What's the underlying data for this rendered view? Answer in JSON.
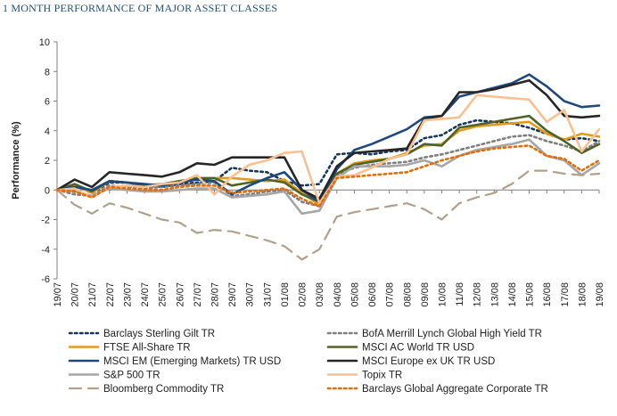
{
  "header": {
    "title": "1 MONTH PERFORMANCE OF MAJOR ASSET CLASSES"
  },
  "chart_data": {
    "type": "line",
    "title": "1 MONTH PERFORMANCE OF MAJOR ASSET CLASSES",
    "ylabel": "Performance (%)",
    "xlabel": "",
    "ylim": [
      -6,
      10
    ],
    "yticks": [
      -6,
      -4,
      -2,
      0,
      2,
      4,
      6,
      8,
      10
    ],
    "grid": false,
    "legend": "bottom",
    "categories": [
      "19/07",
      "20/07",
      "21/07",
      "22/07",
      "23/07",
      "24/07",
      "25/07",
      "26/07",
      "27/07",
      "28/07",
      "29/07",
      "30/07",
      "31/07",
      "01/08",
      "02/08",
      "03/08",
      "04/08",
      "05/08",
      "06/08",
      "07/08",
      "08/08",
      "09/08",
      "10/08",
      "11/08",
      "12/08",
      "13/08",
      "14/08",
      "15/08",
      "16/08",
      "17/08",
      "18/08",
      "19/08"
    ],
    "series": [
      {
        "name": "Barclays Sterling Gilt TR",
        "color": "#17375e",
        "dash": "dot",
        "values": [
          0,
          0.3,
          -0.2,
          0.5,
          0.5,
          0.3,
          0.2,
          0.4,
          0.5,
          0.6,
          1.5,
          1.3,
          1.2,
          0.6,
          0.3,
          0.4,
          2.4,
          2.5,
          2.4,
          2.6,
          2.7,
          3.5,
          3.7,
          4.4,
          4.7,
          4.6,
          4.5,
          4.2,
          3.8,
          3.4,
          3.5,
          3.3
        ]
      },
      {
        "name": "BofA Merrill Lynch Global High Yield TR",
        "color": "#7f7f7f",
        "dash": "dot",
        "values": [
          0,
          -0.3,
          -0.4,
          0.3,
          0.2,
          0.1,
          0.2,
          0.3,
          0.4,
          0.5,
          -0.4,
          -0.3,
          -0.1,
          0.0,
          -0.8,
          -1.1,
          1.0,
          1.5,
          1.7,
          1.8,
          1.9,
          2.2,
          2.4,
          2.7,
          3.0,
          3.3,
          3.6,
          3.7,
          3.3,
          3.0,
          2.6,
          3.3
        ]
      },
      {
        "name": "FTSE All-Share TR",
        "color": "#e19b1c",
        "dash": "solid",
        "values": [
          0,
          0.3,
          -0.2,
          0.6,
          0.5,
          0.3,
          0.3,
          0.6,
          0.7,
          0.8,
          0.8,
          0.7,
          0.6,
          0.7,
          -0.2,
          -1.0,
          1.1,
          1.8,
          2.0,
          2.1,
          2.5,
          3.0,
          3.1,
          4.0,
          4.3,
          4.4,
          4.5,
          4.6,
          3.8,
          3.4,
          3.8,
          3.6
        ]
      },
      {
        "name": "MSCI AC World TR USD",
        "color": "#4f6228",
        "dash": "solid",
        "values": [
          0,
          0.4,
          -0.1,
          0.6,
          0.5,
          0.3,
          0.4,
          0.6,
          0.8,
          0.8,
          0.3,
          0.5,
          0.7,
          0.5,
          -0.3,
          -0.8,
          1.1,
          1.7,
          1.9,
          2.1,
          2.4,
          3.1,
          3.0,
          4.2,
          4.4,
          4.6,
          4.8,
          5.0,
          4.0,
          3.3,
          2.5,
          3.1
        ]
      },
      {
        "name": "MSCI EM (Emerging Markets) TR USD",
        "color": "#1f497d",
        "dash": "solid",
        "values": [
          0,
          0.2,
          0.0,
          0.6,
          0.5,
          0.4,
          0.3,
          0.5,
          0.7,
          0.6,
          -0.3,
          0.3,
          0.8,
          1.2,
          0.0,
          -0.8,
          1.4,
          2.7,
          3.1,
          3.6,
          4.1,
          4.9,
          5.0,
          6.3,
          6.6,
          6.9,
          7.2,
          7.8,
          7.0,
          6.0,
          5.6,
          5.7
        ]
      },
      {
        "name": "MSCI Europe ex UK TR USD",
        "color": "#262626",
        "dash": "solid",
        "values": [
          0,
          0.7,
          0.2,
          1.2,
          1.1,
          1.0,
          0.9,
          1.2,
          1.8,
          1.7,
          2.2,
          2.2,
          2.2,
          2.2,
          0.0,
          -0.6,
          1.6,
          2.5,
          2.6,
          2.7,
          2.8,
          4.8,
          5.0,
          6.6,
          6.6,
          6.8,
          7.1,
          7.4,
          6.4,
          5.0,
          4.9,
          5.0
        ]
      },
      {
        "name": "S&P 500 TR",
        "color": "#a6a6a6",
        "dash": "solid",
        "values": [
          0,
          -0.1,
          -0.4,
          0.1,
          0.0,
          -0.1,
          -0.1,
          0.0,
          0.1,
          0.1,
          -0.5,
          -0.4,
          -0.3,
          -0.1,
          -1.6,
          -1.4,
          0.8,
          1.6,
          1.6,
          1.6,
          1.7,
          2.0,
          1.6,
          2.3,
          2.7,
          2.9,
          3.1,
          3.4,
          2.3,
          2.0,
          1.0,
          1.8
        ]
      },
      {
        "name": "Topix TR",
        "color": "#fac090",
        "dash": "solid",
        "values": [
          0,
          0.1,
          -0.5,
          0.2,
          0.3,
          0.2,
          0.4,
          0.5,
          1.0,
          -0.3,
          0.9,
          1.7,
          2.0,
          2.5,
          2.6,
          -0.9,
          0.9,
          1.0,
          1.5,
          2.1,
          2.4,
          4.7,
          4.8,
          4.9,
          6.4,
          6.3,
          6.2,
          6.1,
          4.6,
          5.4,
          2.6,
          4.1
        ]
      },
      {
        "name": "Bloomberg Commodity TR",
        "color": "#b1a08a",
        "dash": "dash",
        "values": [
          0,
          -1.0,
          -1.6,
          -0.9,
          -1.2,
          -1.6,
          -2.0,
          -2.2,
          -2.9,
          -2.7,
          -2.8,
          -3.1,
          -3.4,
          -3.8,
          -4.7,
          -4.0,
          -1.8,
          -1.5,
          -1.3,
          -1.1,
          -0.9,
          -1.3,
          -2.0,
          -0.9,
          -0.5,
          -0.2,
          0.4,
          1.3,
          1.3,
          1.1,
          1.0,
          1.1
        ]
      },
      {
        "name": "Barclays Global Aggregate Corporate TR",
        "color": "#e46c0a",
        "dash": "dot",
        "values": [
          0,
          -0.1,
          -0.5,
          0.2,
          0.1,
          0.0,
          0.0,
          0.2,
          0.3,
          0.3,
          -0.2,
          -0.1,
          0.0,
          0.1,
          -0.6,
          -1.1,
          0.8,
          0.9,
          1.0,
          1.1,
          1.2,
          1.6,
          2.0,
          2.3,
          2.6,
          2.8,
          2.9,
          3.0,
          2.3,
          2.1,
          1.3,
          2.0
        ]
      }
    ]
  }
}
